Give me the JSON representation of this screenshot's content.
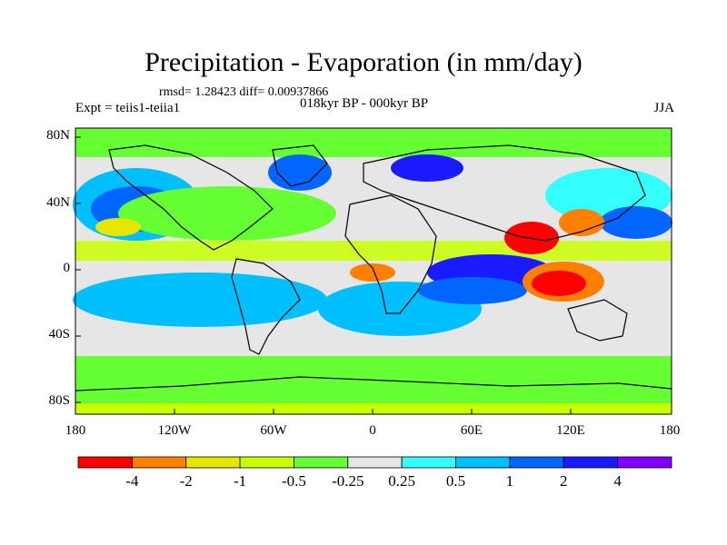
{
  "title": "Precipitation - Evaporation (in mm/day)",
  "stats": "rmsd= 1.28423  diff= 0.00937866",
  "experiment": "Expt = teiis1-teiia1",
  "period": "018kyr BP - 000kyr BP",
  "season": "JJA",
  "axes": {
    "y_ticks": [
      "80N",
      "40N",
      "0",
      "40S",
      "80S"
    ],
    "x_ticks": [
      "180",
      "120W",
      "60W",
      "0",
      "60E",
      "120E",
      "180"
    ]
  },
  "colorbar": {
    "labels": [
      "-4",
      "-2",
      "-1",
      "-0.5",
      "-0.25",
      "0.25",
      "0.5",
      "1",
      "2",
      "4"
    ],
    "colors": [
      "#ff0000",
      "#ff8000",
      "#e6e600",
      "#c8ff00",
      "#66ff33",
      "#e6e6e6",
      "#33ffff",
      "#00bfff",
      "#0066ff",
      "#1a1aff",
      "#8000ff"
    ]
  },
  "colors": {
    "neutral": "#e6e6e6",
    "coast": "#000000"
  }
}
